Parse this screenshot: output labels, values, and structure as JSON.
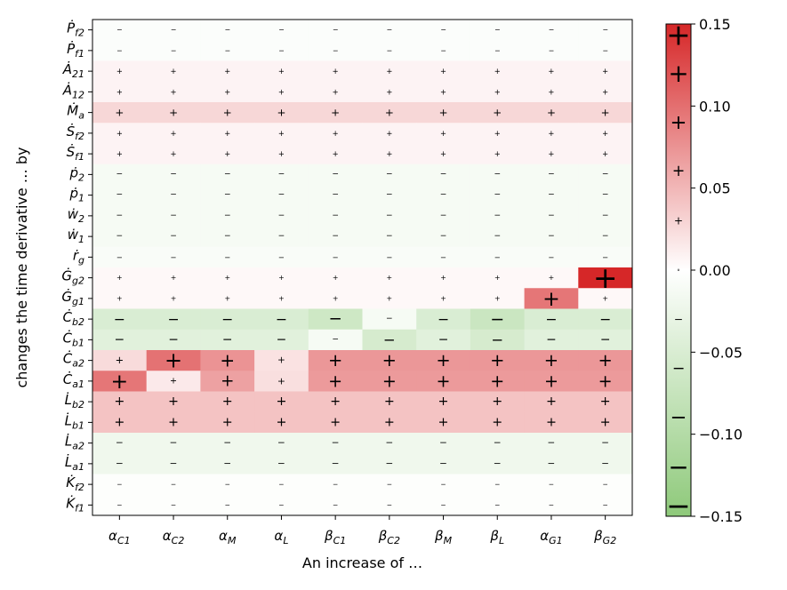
{
  "chart_data": {
    "type": "heatmap",
    "xlabel": "An increase of …",
    "ylabel": "changes the time derivative … by",
    "x_categories": [
      {
        "base": "α",
        "sub": "C1"
      },
      {
        "base": "α",
        "sub": "C2"
      },
      {
        "base": "α",
        "sub": "M"
      },
      {
        "base": "α",
        "sub": "L"
      },
      {
        "base": "β",
        "sub": "C1"
      },
      {
        "base": "β",
        "sub": "C2"
      },
      {
        "base": "β",
        "sub": "M"
      },
      {
        "base": "β",
        "sub": "L"
      },
      {
        "base": "α",
        "sub": "G1"
      },
      {
        "base": "β",
        "sub": "G2"
      }
    ],
    "y_categories": [
      {
        "base": "P",
        "sub": "f2"
      },
      {
        "base": "P",
        "sub": "f1"
      },
      {
        "base": "A",
        "sub": "21"
      },
      {
        "base": "A",
        "sub": "12"
      },
      {
        "base": "M",
        "sub": "a"
      },
      {
        "base": "S",
        "sub": "f2"
      },
      {
        "base": "S",
        "sub": "f1"
      },
      {
        "base": "p",
        "sub": "2"
      },
      {
        "base": "p",
        "sub": "1"
      },
      {
        "base": "w",
        "sub": "2"
      },
      {
        "base": "w",
        "sub": "1"
      },
      {
        "base": "r",
        "sub": "g"
      },
      {
        "base": "G",
        "sub": "g2"
      },
      {
        "base": "G",
        "sub": "g1"
      },
      {
        "base": "C",
        "sub": "b2"
      },
      {
        "base": "C",
        "sub": "b1"
      },
      {
        "base": "C",
        "sub": "a2"
      },
      {
        "base": "C",
        "sub": "a1"
      },
      {
        "base": "L",
        "sub": "b2"
      },
      {
        "base": "L",
        "sub": "b1"
      },
      {
        "base": "L",
        "sub": "a2"
      },
      {
        "base": "L",
        "sub": "a1"
      },
      {
        "base": "K",
        "sub": "f2"
      },
      {
        "base": "K",
        "sub": "f1"
      }
    ],
    "values": [
      [
        -0.005,
        -0.005,
        -0.005,
        -0.005,
        -0.005,
        -0.005,
        -0.005,
        -0.005,
        -0.005,
        -0.005
      ],
      [
        -0.005,
        -0.005,
        -0.005,
        -0.005,
        -0.005,
        -0.005,
        -0.005,
        -0.005,
        -0.005,
        -0.005
      ],
      [
        0.008,
        0.008,
        0.008,
        0.008,
        0.008,
        0.008,
        0.008,
        0.008,
        0.008,
        0.008
      ],
      [
        0.008,
        0.008,
        0.008,
        0.008,
        0.008,
        0.008,
        0.008,
        0.008,
        0.008,
        0.008
      ],
      [
        0.028,
        0.028,
        0.028,
        0.028,
        0.028,
        0.028,
        0.028,
        0.028,
        0.028,
        0.028
      ],
      [
        0.008,
        0.008,
        0.008,
        0.008,
        0.008,
        0.008,
        0.008,
        0.008,
        0.008,
        0.008
      ],
      [
        0.008,
        0.008,
        0.008,
        0.008,
        0.008,
        0.008,
        0.008,
        0.008,
        0.008,
        0.008
      ],
      [
        -0.012,
        -0.012,
        -0.012,
        -0.012,
        -0.012,
        -0.012,
        -0.012,
        -0.012,
        -0.012,
        -0.012
      ],
      [
        -0.012,
        -0.012,
        -0.012,
        -0.012,
        -0.012,
        -0.012,
        -0.012,
        -0.012,
        -0.012,
        -0.012
      ],
      [
        -0.012,
        -0.012,
        -0.012,
        -0.012,
        -0.012,
        -0.012,
        -0.012,
        -0.012,
        -0.012,
        -0.012
      ],
      [
        -0.012,
        -0.012,
        -0.012,
        -0.012,
        -0.012,
        -0.012,
        -0.012,
        -0.012,
        -0.012,
        -0.012
      ],
      [
        -0.008,
        -0.008,
        -0.008,
        -0.008,
        -0.008,
        -0.008,
        -0.008,
        -0.008,
        -0.008,
        -0.008
      ],
      [
        0.005,
        0.005,
        0.005,
        0.005,
        0.005,
        0.005,
        0.005,
        0.005,
        0.005,
        0.15
      ],
      [
        0.005,
        0.005,
        0.005,
        0.005,
        0.005,
        0.005,
        0.005,
        0.005,
        0.095,
        0.005
      ],
      [
        -0.05,
        -0.05,
        -0.05,
        -0.05,
        -0.065,
        -0.012,
        -0.05,
        -0.07,
        -0.05,
        -0.05
      ],
      [
        -0.04,
        -0.04,
        -0.04,
        -0.04,
        -0.012,
        -0.055,
        -0.04,
        -0.055,
        -0.04,
        -0.04
      ],
      [
        0.025,
        0.098,
        0.075,
        0.02,
        0.072,
        0.072,
        0.072,
        0.072,
        0.072,
        0.072
      ],
      [
        0.095,
        0.015,
        0.065,
        0.022,
        0.07,
        0.07,
        0.07,
        0.07,
        0.07,
        0.07
      ],
      [
        0.042,
        0.042,
        0.042,
        0.042,
        0.042,
        0.042,
        0.042,
        0.042,
        0.042,
        0.042
      ],
      [
        0.042,
        0.042,
        0.042,
        0.042,
        0.042,
        0.042,
        0.042,
        0.042,
        0.042,
        0.042
      ],
      [
        -0.02,
        -0.02,
        -0.02,
        -0.02,
        -0.02,
        -0.02,
        -0.02,
        -0.02,
        -0.02,
        -0.02
      ],
      [
        -0.02,
        -0.02,
        -0.02,
        -0.02,
        -0.02,
        -0.02,
        -0.02,
        -0.02,
        -0.02,
        -0.02
      ],
      [
        -0.003,
        -0.003,
        -0.003,
        -0.003,
        -0.003,
        -0.003,
        -0.003,
        -0.003,
        -0.003,
        -0.003
      ],
      [
        -0.003,
        -0.003,
        -0.003,
        -0.003,
        -0.003,
        -0.003,
        -0.003,
        -0.003,
        -0.003,
        -0.003
      ]
    ],
    "vmin": -0.15,
    "vmax": 0.15,
    "colorbar": {
      "ticks": [
        0.15,
        0.1,
        0.05,
        0.0,
        -0.05,
        -0.1,
        -0.15
      ],
      "tick_labels": [
        "0.15",
        "0.10",
        "0.05",
        "0.00",
        "−0.05",
        "−0.10",
        "−0.15"
      ],
      "colors": {
        "negative": "#8ec97a",
        "zero": "#ffffff",
        "positive": "#d62728"
      }
    },
    "signs": {
      "plus": "+",
      "minus": "−",
      "zero": "∘"
    }
  }
}
